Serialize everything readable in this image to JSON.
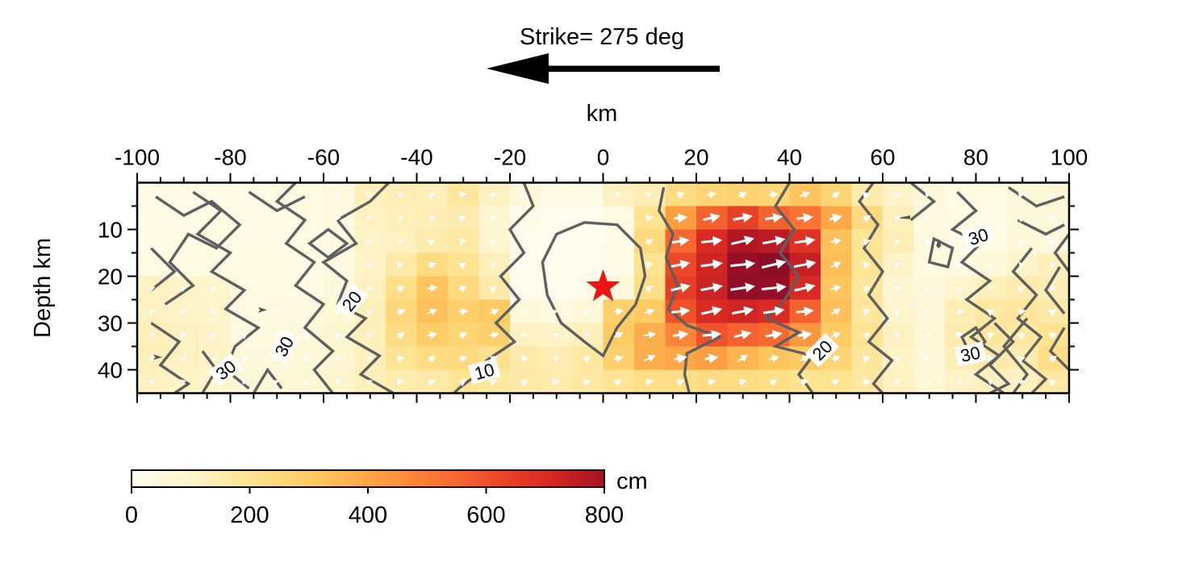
{
  "chart_data": {
    "type": "heatmap",
    "title": "Strike= 275 deg",
    "strike_arrow_direction": "left",
    "xlabel": "km",
    "ylabel": "Depth km",
    "colorbar_label": "cm",
    "x_range": [
      -100,
      100
    ],
    "depth_range": [
      0,
      45
    ],
    "x_ticks": [
      -100,
      -80,
      -60,
      -40,
      -20,
      0,
      20,
      40,
      60,
      80,
      100
    ],
    "x_minor_step": 5,
    "depth_ticks": [
      10,
      20,
      30,
      40
    ],
    "depth_minor_step": 5,
    "colorbar_ticks": [
      0,
      200,
      400,
      600,
      800
    ],
    "colorbar_range": [
      0,
      800
    ],
    "colormap": [
      [
        0,
        "#fffdf0"
      ],
      [
        100,
        "#fef5cd"
      ],
      [
        200,
        "#fee390"
      ],
      [
        300,
        "#fecb63"
      ],
      [
        400,
        "#fda746"
      ],
      [
        500,
        "#fb7c35"
      ],
      [
        600,
        "#f0512b"
      ],
      [
        700,
        "#d92b23"
      ],
      [
        800,
        "#a81226"
      ],
      [
        900,
        "#7a0a25"
      ]
    ],
    "grid": {
      "n_cols": 30,
      "n_rows": 9,
      "cell_km_x": 6.667,
      "cell_km_depth": 5,
      "units": "cm",
      "values": [
        [
          30,
          30,
          30,
          30,
          40,
          40,
          50,
          130,
          140,
          130,
          180,
          120,
          60,
          30,
          30,
          120,
          140,
          230,
          260,
          270,
          260,
          320,
          260,
          150,
          110,
          60,
          40,
          40,
          60,
          80
        ],
        [
          30,
          30,
          40,
          30,
          30,
          40,
          50,
          120,
          130,
          140,
          150,
          90,
          20,
          10,
          10,
          40,
          200,
          420,
          560,
          640,
          560,
          520,
          400,
          240,
          130,
          50,
          40,
          30,
          60,
          60
        ],
        [
          30,
          40,
          40,
          30,
          30,
          40,
          40,
          110,
          120,
          150,
          170,
          100,
          10,
          5,
          5,
          30,
          240,
          550,
          700,
          780,
          760,
          680,
          330,
          190,
          140,
          50,
          40,
          40,
          70,
          50
        ],
        [
          40,
          40,
          40,
          40,
          40,
          40,
          50,
          110,
          160,
          230,
          200,
          130,
          10,
          5,
          10,
          30,
          200,
          620,
          720,
          840,
          860,
          740,
          340,
          190,
          110,
          50,
          50,
          60,
          100,
          130
        ],
        [
          120,
          110,
          100,
          40,
          40,
          40,
          60,
          120,
          220,
          320,
          240,
          160,
          15,
          10,
          20,
          60,
          220,
          650,
          730,
          850,
          840,
          700,
          320,
          180,
          90,
          60,
          100,
          130,
          150,
          140
        ],
        [
          120,
          110,
          100,
          40,
          50,
          50,
          80,
          130,
          250,
          330,
          280,
          300,
          60,
          50,
          70,
          280,
          300,
          600,
          700,
          720,
          700,
          560,
          330,
          180,
          100,
          70,
          140,
          170,
          180,
          160
        ],
        [
          130,
          120,
          110,
          50,
          50,
          60,
          90,
          130,
          230,
          290,
          260,
          280,
          120,
          110,
          130,
          300,
          380,
          480,
          600,
          560,
          540,
          440,
          300,
          200,
          120,
          80,
          150,
          180,
          170,
          200
        ],
        [
          130,
          120,
          110,
          60,
          60,
          70,
          90,
          130,
          190,
          230,
          240,
          210,
          160,
          140,
          170,
          280,
          380,
          400,
          420,
          360,
          320,
          300,
          260,
          180,
          110,
          70,
          140,
          160,
          150,
          220
        ],
        [
          120,
          110,
          100,
          70,
          70,
          80,
          100,
          130,
          150,
          160,
          190,
          175,
          160,
          150,
          170,
          190,
          220,
          220,
          230,
          230,
          220,
          200,
          200,
          170,
          120,
          80,
          110,
          130,
          120,
          170
        ]
      ]
    },
    "hypocenter": {
      "x_km": 0,
      "depth_km": 22.3,
      "marker": "star",
      "color": "#ee1414"
    },
    "contour_levels_labeled": [
      10,
      20,
      30
    ],
    "contours": [
      {
        "pts": [
          [
            -13,
            17
          ],
          [
            -10,
            11
          ],
          [
            -4,
            8.5
          ],
          [
            3,
            9
          ],
          [
            8,
            14
          ],
          [
            9,
            20
          ],
          [
            7,
            26
          ],
          [
            3,
            31
          ],
          [
            0,
            37
          ],
          [
            -4,
            34
          ],
          [
            -9,
            30
          ],
          [
            -12,
            24
          ]
        ],
        "closed": true
      },
      {
        "pts": [
          [
            -17,
            0
          ],
          [
            -15,
            5
          ],
          [
            -20,
            10
          ],
          [
            -17,
            15
          ],
          [
            -22,
            20
          ],
          [
            -18,
            25
          ],
          [
            -23,
            30
          ],
          [
            -19,
            34
          ],
          [
            -25,
            38
          ],
          [
            -27,
            41
          ],
          [
            -31,
            44
          ],
          [
            -32,
            45
          ]
        ]
      },
      {
        "pts": [
          [
            13,
            1
          ],
          [
            12,
            6
          ],
          [
            15,
            11
          ],
          [
            13.5,
            16
          ],
          [
            16,
            22
          ],
          [
            14,
            27
          ],
          [
            18,
            30.5
          ],
          [
            25,
            33
          ],
          [
            18,
            36.5
          ],
          [
            17.5,
            41
          ],
          [
            18.5,
            45
          ]
        ]
      },
      {
        "pts": [
          [
            -46,
            0
          ],
          [
            -50,
            4
          ],
          [
            -57,
            8
          ],
          [
            -53,
            13
          ],
          [
            -60,
            17
          ],
          [
            -55,
            21
          ],
          [
            -57,
            26
          ],
          [
            -51,
            29
          ],
          [
            -55,
            33
          ],
          [
            -48,
            37
          ],
          [
            -52,
            41
          ],
          [
            -45,
            45
          ]
        ]
      },
      {
        "pts": [
          [
            40,
            0
          ],
          [
            37,
            5
          ],
          [
            41,
            10
          ],
          [
            38,
            15
          ],
          [
            42,
            20
          ],
          [
            39,
            25
          ],
          [
            35,
            29
          ],
          [
            42,
            32
          ],
          [
            37,
            35
          ],
          [
            45,
            37
          ],
          [
            42,
            41
          ],
          [
            45,
            45
          ]
        ]
      },
      {
        "pts": [
          [
            -88,
            2
          ],
          [
            -82,
            6
          ],
          [
            -87,
            11
          ],
          [
            -80,
            15
          ],
          [
            -84,
            19
          ],
          [
            -77,
            23
          ],
          [
            -81,
            27
          ],
          [
            -74,
            31
          ],
          [
            -79,
            35
          ],
          [
            -81,
            40
          ],
          [
            -76,
            44
          ]
        ]
      },
      {
        "pts": [
          [
            -58,
            45
          ],
          [
            -62,
            40
          ],
          [
            -58,
            36
          ],
          [
            -64,
            31
          ],
          [
            -60,
            26
          ],
          [
            -66,
            22
          ],
          [
            -62,
            17
          ],
          [
            -68,
            13
          ],
          [
            -64,
            8
          ],
          [
            -70,
            4
          ],
          [
            -66,
            0
          ]
        ]
      },
      {
        "pts": [
          [
            -96,
            3
          ],
          [
            -90,
            7
          ],
          [
            -84,
            4
          ],
          [
            -78,
            9
          ],
          [
            -83,
            14
          ],
          [
            -89,
            11
          ],
          [
            -93,
            17
          ],
          [
            -88,
            22
          ],
          [
            -94,
            26
          ]
        ]
      },
      {
        "pts": [
          [
            -97,
            14
          ],
          [
            -92,
            19
          ],
          [
            -97,
            23
          ]
        ]
      },
      {
        "pts": [
          [
            -76,
            2
          ],
          [
            -70,
            6
          ],
          [
            -64,
            3
          ]
        ]
      },
      {
        "pts": [
          [
            -59,
            10
          ],
          [
            -55,
            13
          ],
          [
            -59,
            16
          ],
          [
            -63,
            13
          ]
        ],
        "closed": true
      },
      {
        "pts": [
          [
            -97,
            30
          ],
          [
            -91,
            34
          ],
          [
            -95,
            39
          ],
          [
            -89,
            43
          ],
          [
            -92,
            45
          ]
        ]
      },
      {
        "pts": [
          [
            -75,
            45
          ],
          [
            -72,
            40
          ],
          [
            -69,
            44
          ]
        ]
      },
      {
        "pts": [
          [
            -86,
            45
          ],
          [
            -83,
            40
          ],
          [
            -86,
            36
          ]
        ]
      },
      {
        "pts": [
          [
            58,
            0
          ],
          [
            55,
            4
          ],
          [
            59,
            9
          ],
          [
            56,
            14
          ],
          [
            60,
            19
          ],
          [
            57,
            24
          ],
          [
            61,
            29
          ],
          [
            57,
            34
          ],
          [
            62,
            38
          ],
          [
            58,
            43
          ],
          [
            60,
            45
          ]
        ]
      },
      {
        "pts": [
          [
            66,
            0
          ],
          [
            71,
            4
          ],
          [
            66,
            8
          ]
        ]
      },
      {
        "pts": [
          [
            76,
            2
          ],
          [
            80,
            6
          ],
          [
            75,
            10
          ],
          [
            81,
            13
          ],
          [
            77,
            17
          ],
          [
            83,
            21
          ],
          [
            78,
            25
          ],
          [
            84,
            29
          ],
          [
            79,
            33
          ],
          [
            85,
            37
          ],
          [
            80,
            41
          ],
          [
            86,
            45
          ]
        ]
      },
      {
        "pts": [
          [
            71,
            12
          ],
          [
            75,
            14
          ],
          [
            74,
            18
          ],
          [
            70,
            17
          ]
        ],
        "closed": true
      },
      {
        "pts": [
          [
            87,
            1
          ],
          [
            93,
            5
          ],
          [
            99,
            3
          ]
        ]
      },
      {
        "pts": [
          [
            89,
            8
          ],
          [
            95,
            11
          ],
          [
            99,
            9
          ]
        ]
      },
      {
        "pts": [
          [
            92,
            14
          ],
          [
            88,
            19
          ],
          [
            93,
            24
          ],
          [
            89,
            29
          ],
          [
            94,
            33
          ],
          [
            90,
            38
          ],
          [
            95,
            42
          ],
          [
            92,
            45
          ]
        ]
      },
      {
        "pts": [
          [
            98,
            18
          ],
          [
            95,
            23
          ],
          [
            99,
            28
          ]
        ]
      },
      {
        "pts": [
          [
            77,
            33
          ],
          [
            80,
            31
          ],
          [
            82,
            34
          ],
          [
            79,
            37
          ]
        ],
        "closed": true
      },
      {
        "pts": [
          [
            84,
            30
          ],
          [
            88,
            34
          ],
          [
            83,
            39
          ],
          [
            87,
            43
          ],
          [
            83,
            45
          ]
        ]
      },
      {
        "pts": [
          [
            91,
            29
          ],
          [
            86,
            35
          ],
          [
            91,
            41
          ],
          [
            88,
            45
          ]
        ]
      },
      {
        "pts": [
          [
            99,
            31
          ],
          [
            96,
            36
          ],
          [
            100,
            40
          ]
        ]
      },
      {
        "pts": [
          [
            100,
            11
          ],
          [
            97,
            15
          ],
          [
            100,
            19
          ]
        ]
      }
    ],
    "contour_labels": [
      {
        "text": "10",
        "x": -25.5,
        "d": 40.3,
        "rot": -15
      },
      {
        "text": "20",
        "x": -54,
        "d": 25.3,
        "rot": -52
      },
      {
        "text": "20",
        "x": 47,
        "d": 35.8,
        "rot": -45
      },
      {
        "text": "30",
        "x": -81,
        "d": 40.0,
        "rot": -38
      },
      {
        "text": "30",
        "x": -68.5,
        "d": 35.0,
        "rot": -62
      },
      {
        "text": "30",
        "x": 80.5,
        "d": 11.5,
        "rot": -18
      },
      {
        "text": "30",
        "x": 78.8,
        "d": 36.6,
        "rot": -12
      }
    ],
    "slip_arrows": {
      "color": "#ffffff",
      "min_slip": 50
    },
    "dark_marks": [
      {
        "x": -95.5,
        "d": 37.3,
        "type": "arrow"
      },
      {
        "x": -73,
        "d": 27.2,
        "type": "arrow"
      },
      {
        "x": 64.5,
        "d": 7.6,
        "type": "lens"
      },
      {
        "x": 72,
        "d": 13,
        "type": "drop"
      }
    ],
    "contour_color": "#5f5f5f",
    "frame_color": "#000000"
  }
}
